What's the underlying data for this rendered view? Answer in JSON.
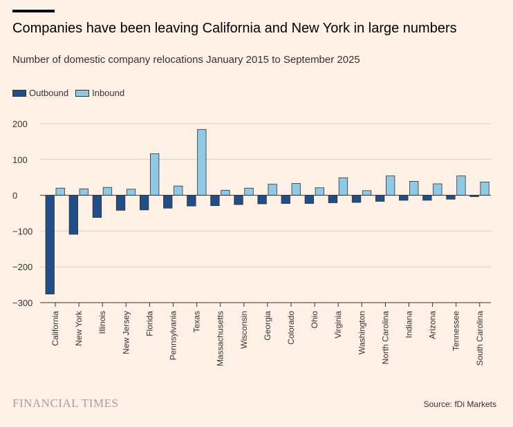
{
  "title": "Companies have been leaving California and New York in large numbers",
  "subtitle": "Number of domestic company relocations January 2015 to September 2025",
  "legend": {
    "outbound": "Outbound",
    "inbound": "Inbound"
  },
  "brand": "FINANCIAL TIMES",
  "source": "Source: fDi Markets",
  "colors": {
    "outbound": "#1f4e89",
    "inbound": "#8ecae6",
    "grid": "#d9cec3",
    "zero": "#33302e",
    "background": "#fff1e5"
  },
  "chart_data": {
    "type": "bar",
    "categories": [
      "California",
      "New York",
      "Illinois",
      "New Jersey",
      "Florida",
      "Pennsylvania",
      "Texas",
      "Massachusetts",
      "Wisconsin",
      "Georgia",
      "Colorado",
      "Ohio",
      "Virginia",
      "Washington",
      "North Carolina",
      "Indiana",
      "Arizona",
      "Tennessee",
      "South Carolina"
    ],
    "series": [
      {
        "name": "Outbound",
        "values": [
          -276,
          -109,
          -62,
          -42,
          -41,
          -36,
          -30,
          -29,
          -26,
          -24,
          -23,
          -23,
          -21,
          -20,
          -17,
          -14,
          -14,
          -11,
          -4
        ]
      },
      {
        "name": "Inbound",
        "values": [
          20,
          18,
          22,
          17,
          116,
          26,
          184,
          14,
          20,
          31,
          33,
          21,
          49,
          13,
          54,
          39,
          32,
          54,
          37
        ]
      }
    ],
    "yticks": [
      "200",
      "100",
      "0",
      "-100",
      "-200",
      "-300"
    ],
    "ylim": [
      -300,
      200
    ],
    "title": "Companies have been leaving California and New York in large numbers",
    "xlabel": "",
    "ylabel": ""
  }
}
